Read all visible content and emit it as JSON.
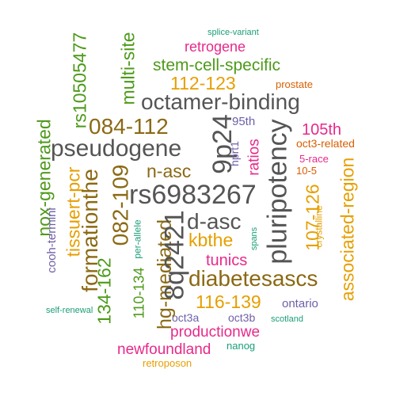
{
  "colors": {
    "gray": "#555555",
    "brown": "#8B6914",
    "orange": "#E69F00",
    "green": "#4D9A1A",
    "magenta": "#E7298A",
    "purple": "#6E5FA8",
    "red_orange": "#D95F02",
    "teal": "#1B9E77"
  },
  "words": {
    "w01": "splice-variant",
    "w02": "retrogene",
    "w03": "stem-cell-specific",
    "w04": "prostate",
    "w05": "112-123",
    "w06": "octamer-binding",
    "w07": "084-112",
    "w08": "95th",
    "w09": "105th",
    "w10": "pseudogene",
    "w11": "oct3-related",
    "w12": "n-asc",
    "w13": "5-race",
    "w14": "10-5",
    "w15": "rs6983267",
    "w16": "d-asc",
    "w17": "kbthe",
    "w18": "tunics",
    "w19": "diabetesascs",
    "w20": "116-139",
    "w21": "ontario",
    "w22": "oct3a",
    "w23": "oct3b",
    "w24": "productionwe",
    "w25": "scotland",
    "w26": "self-renewal",
    "w27": "newfoundland",
    "w28": "nanog",
    "w29": "retroposon",
    "w30": "rs10505477",
    "w31": "multi-site",
    "w32": "nox-generated",
    "w33": "tissuert-pcr",
    "w34": "cooh-termini",
    "w35": "formationthe",
    "w36": "082-109",
    "w37": "134-162",
    "w38": "110-134",
    "w39": "per-allele",
    "w40": "hg-mediated",
    "w41": "8q2421",
    "w42": "9p24",
    "w43": "hprt1",
    "w44": "ratios",
    "w45": "spans",
    "w46": "pluripotency",
    "w47": "107-126",
    "w48": "crystalline",
    "w49": "associated-region"
  }
}
